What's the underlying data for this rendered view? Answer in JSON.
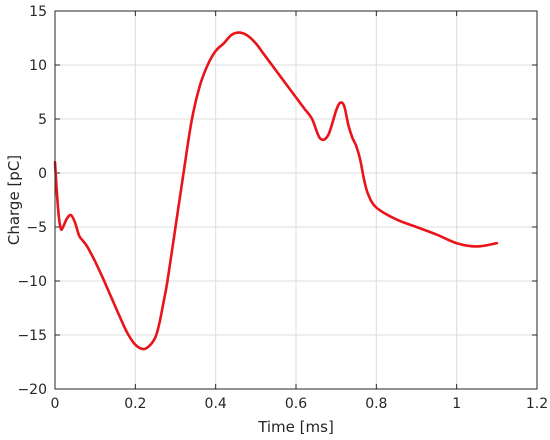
{
  "chart_data": {
    "type": "line",
    "title": "",
    "xlabel": "Time [ms]",
    "ylabel": "Charge [pC]",
    "xlim": [
      0,
      1.2
    ],
    "ylim": [
      -20,
      15
    ],
    "xticks": [
      0,
      0.2,
      0.4,
      0.6,
      0.8,
      1,
      1.2
    ],
    "xtick_labels": [
      "0",
      "0.2",
      "0.4",
      "0.6",
      "0.8",
      "1",
      "1.2"
    ],
    "yticks": [
      -20,
      -15,
      -10,
      -5,
      0,
      5,
      10,
      15
    ],
    "ytick_labels": [
      "−20",
      "−15",
      "−10",
      "−5",
      "0",
      "5",
      "10",
      "15"
    ],
    "grid": true,
    "legend": "none",
    "series": [
      {
        "color": "#e8141a",
        "x": [
          0.0,
          0.005,
          0.01,
          0.015,
          0.02,
          0.03,
          0.04,
          0.05,
          0.06,
          0.07,
          0.08,
          0.1,
          0.12,
          0.14,
          0.16,
          0.18,
          0.2,
          0.22,
          0.235,
          0.25,
          0.26,
          0.27,
          0.28,
          0.3,
          0.32,
          0.34,
          0.36,
          0.38,
          0.4,
          0.42,
          0.44,
          0.46,
          0.48,
          0.5,
          0.52,
          0.54,
          0.56,
          0.58,
          0.6,
          0.62,
          0.64,
          0.66,
          0.68,
          0.7,
          0.71,
          0.72,
          0.73,
          0.74,
          0.75,
          0.76,
          0.77,
          0.78,
          0.8,
          0.85,
          0.9,
          0.95,
          1.0,
          1.05,
          1.1
        ],
        "y": [
          1.0,
          -2.0,
          -4.2,
          -5.2,
          -5.0,
          -4.2,
          -3.9,
          -4.6,
          -5.8,
          -6.3,
          -6.8,
          -8.2,
          -9.8,
          -11.5,
          -13.2,
          -14.8,
          -15.9,
          -16.3,
          -16.0,
          -15.2,
          -13.9,
          -12.0,
          -10.0,
          -5.0,
          0.0,
          4.8,
          8.0,
          10.0,
          11.3,
          12.0,
          12.8,
          13.0,
          12.7,
          12.0,
          11.0,
          10.0,
          9.0,
          8.0,
          7.0,
          6.0,
          5.0,
          3.2,
          3.5,
          5.8,
          6.5,
          6.2,
          4.5,
          3.3,
          2.5,
          1.2,
          -0.7,
          -2.0,
          -3.2,
          -4.3,
          -5.0,
          -5.7,
          -6.5,
          -6.8,
          -6.5
        ]
      }
    ]
  }
}
